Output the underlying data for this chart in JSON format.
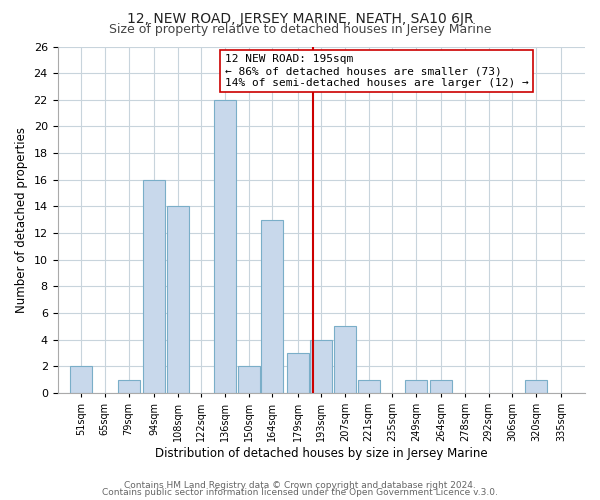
{
  "title": "12, NEW ROAD, JERSEY MARINE, NEATH, SA10 6JR",
  "subtitle": "Size of property relative to detached houses in Jersey Marine",
  "xlabel": "Distribution of detached houses by size in Jersey Marine",
  "ylabel": "Number of detached properties",
  "footer_line1": "Contains HM Land Registry data © Crown copyright and database right 2024.",
  "footer_line2": "Contains public sector information licensed under the Open Government Licence v.3.0.",
  "bar_color": "#c8d8eb",
  "bar_edge_color": "#7aaec8",
  "annotation_text_line1": "12 NEW ROAD: 195sqm",
  "annotation_text_line2": "← 86% of detached houses are smaller (73)",
  "annotation_text_line3": "14% of semi-detached houses are larger (12) →",
  "vline_x": 195,
  "vline_color": "#cc0000",
  "bins": [
    51,
    65,
    79,
    94,
    108,
    122,
    136,
    150,
    164,
    179,
    193,
    207,
    221,
    235,
    249,
    264,
    278,
    292,
    306,
    320,
    335
  ],
  "counts": [
    2,
    0,
    1,
    16,
    14,
    0,
    22,
    2,
    13,
    3,
    4,
    5,
    1,
    0,
    1,
    1,
    0,
    0,
    0,
    1,
    0
  ],
  "ylim": [
    0,
    26
  ],
  "yticks": [
    0,
    2,
    4,
    6,
    8,
    10,
    12,
    14,
    16,
    18,
    20,
    22,
    24,
    26
  ],
  "background_color": "#ffffff",
  "grid_color": "#c8d4dc"
}
